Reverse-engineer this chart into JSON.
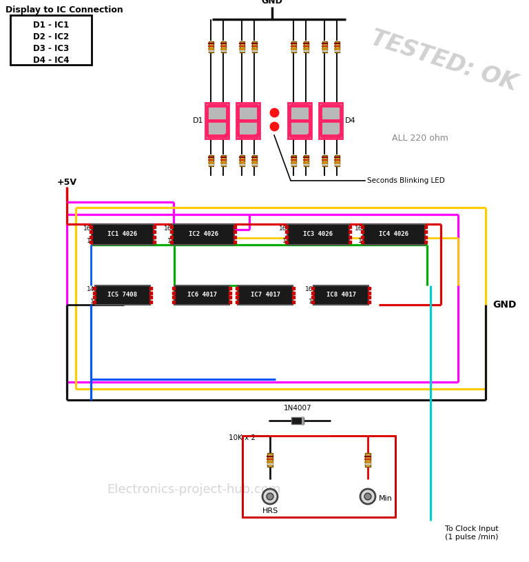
{
  "bg_color": "#ffffff",
  "watermark": "Electronics-project-hub.com",
  "tested_text": "TESTED: OK",
  "gnd_top_label": "GND",
  "plus5v_label": "+5V",
  "gnd_right_label": "GND",
  "all_220_label": "ALL 220 ohm",
  "seconds_blink_label": "Seconds Blinking LED",
  "clock_input_label": "To Clock Input\n(1 pulse /min)",
  "resistor_label": "10K x 2",
  "diode_label": "1N4007",
  "hrs_label": "HRS",
  "min_label": "Min",
  "d1_label": "D1",
  "d4_label": "D4",
  "ic_labels": [
    "IC1 4026",
    "IC2 4026",
    "IC3 4026",
    "IC4 4026"
  ],
  "ic2_labels": [
    "IC5 7408",
    "IC6 4017",
    "IC7 4017",
    "IC8 4017"
  ],
  "display_ic_title": "Display to IC Connection",
  "display_ic_lines": [
    "D1 - IC1",
    "D2 - IC2",
    "D3 - IC3",
    "D4 - IC4"
  ],
  "wire_red": "#dd0000",
  "wire_yellow": "#ffcc00",
  "wire_green": "#00aa00",
  "wire_magenta": "#ff00ff",
  "wire_blue": "#0055ff",
  "wire_cyan": "#00cccc",
  "wire_black": "#111111",
  "seg_color": "#ff2266",
  "seg_bg": "#b8b8b8",
  "ic_bg": "#1a1a1a",
  "ic_fg": "#ffffff",
  "res_body": "#c8a040"
}
